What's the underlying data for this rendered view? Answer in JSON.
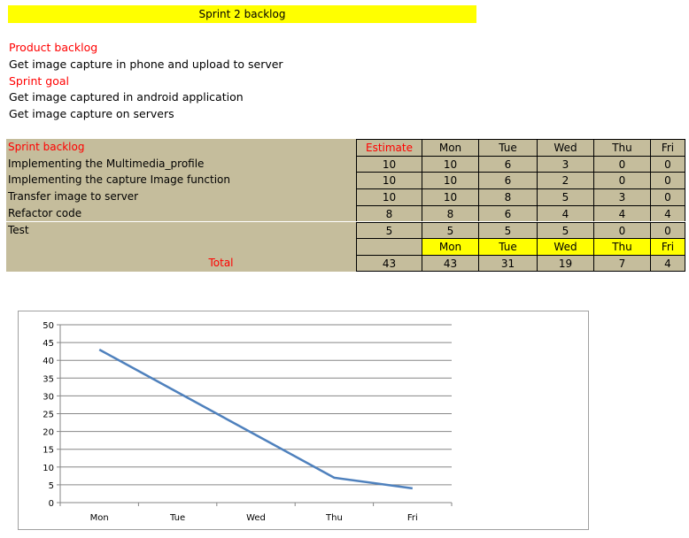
{
  "title": "Sprint 2 backlog",
  "product_backlog": {
    "heading": "Product backlog",
    "text": "Get image capture in phone and upload to server"
  },
  "sprint_goal": {
    "heading": "Sprint goal",
    "lines": [
      "Get image captured in android application",
      "Get image capture on servers"
    ]
  },
  "table": {
    "header_label": "Sprint backlog",
    "estimate_label": "Estimate",
    "days": [
      "Mon",
      "Tue",
      "Wed",
      "Thu",
      "Fri"
    ],
    "rows": [
      {
        "task": "Implementing the Multimedia_profile",
        "estimate": "10",
        "values": [
          "10",
          "6",
          "3",
          "0",
          "0"
        ]
      },
      {
        "task": "Implementing the capture Image function",
        "estimate": "10",
        "values": [
          "10",
          "6",
          "2",
          "0",
          "0"
        ]
      },
      {
        "task": "Transfer image to server",
        "estimate": "10",
        "values": [
          "10",
          "8",
          "5",
          "3",
          "0"
        ]
      },
      {
        "task": "Refactor code",
        "estimate": "8",
        "values": [
          "8",
          "6",
          "4",
          "4",
          "4"
        ]
      },
      {
        "task": "Test",
        "estimate": "5",
        "values": [
          "5",
          "5",
          "5",
          "0",
          "0"
        ]
      }
    ],
    "total_label": "Total",
    "total_estimate": "43",
    "totals": [
      "43",
      "31",
      "19",
      "7",
      "4"
    ]
  },
  "colors": {
    "khaki": "#c5bd9c",
    "yellow": "#ffff00",
    "red": "#ff0000",
    "line": "#4f81bd"
  },
  "chart_data": {
    "type": "line",
    "categories": [
      "Mon",
      "Tue",
      "Wed",
      "Thu",
      "Fri"
    ],
    "series": [
      {
        "values": [
          43,
          31,
          19,
          7,
          4
        ]
      }
    ],
    "yticks": [
      0,
      5,
      10,
      15,
      20,
      25,
      30,
      35,
      40,
      45,
      50
    ],
    "ylim": [
      0,
      50
    ],
    "grid": true,
    "legend": "none",
    "title": "",
    "xlabel": "",
    "ylabel": ""
  }
}
